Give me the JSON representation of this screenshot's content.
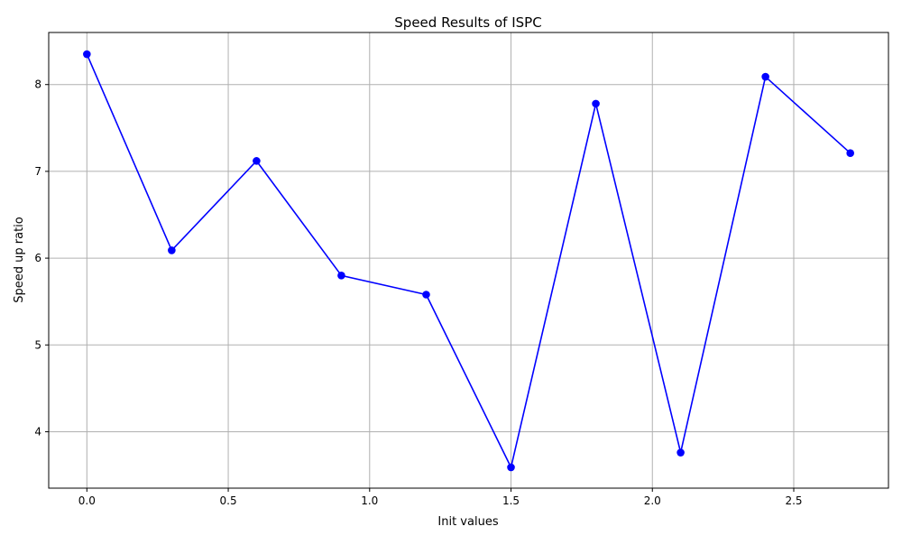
{
  "chart_data": {
    "type": "line",
    "title": "Speed Results of ISPC",
    "xlabel": "Init values",
    "ylabel": "Speed up ratio",
    "xlim": [
      -0.135,
      2.835
    ],
    "ylim": [
      3.35,
      8.6
    ],
    "xticks": [
      0.0,
      0.5,
      1.0,
      1.5,
      2.0,
      2.5
    ],
    "xtick_labels": [
      "0.0",
      "0.5",
      "1.0",
      "1.5",
      "2.0",
      "2.5"
    ],
    "yticks": [
      4,
      5,
      6,
      7,
      8
    ],
    "ytick_labels": [
      "4",
      "5",
      "6",
      "7",
      "8"
    ],
    "grid": true,
    "series": [
      {
        "color": "#0000ff",
        "marker": "circle",
        "x": [
          0.0,
          0.3,
          0.6,
          0.9,
          1.2,
          1.5,
          1.8,
          2.1,
          2.4,
          2.7
        ],
        "y": [
          8.35,
          6.09,
          7.12,
          5.8,
          5.58,
          3.59,
          7.78,
          3.76,
          8.09,
          7.21
        ]
      }
    ]
  }
}
